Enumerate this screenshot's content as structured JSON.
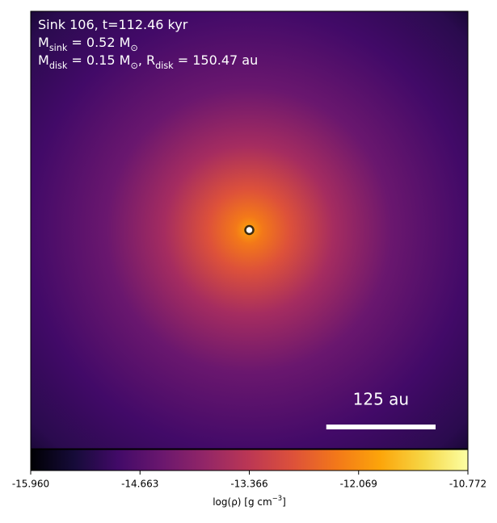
{
  "chart_data": {
    "type": "density-map",
    "annotations": [
      [
        "Sink 106, t=112.46 kyr"
      ],
      [
        "M",
        "sink",
        " = 0.52 M",
        "⊙"
      ],
      [
        "M",
        "disk",
        " = 0.15 M",
        "⊙",
        ", R",
        "disk",
        " = 150.47 au"
      ]
    ],
    "xlim": [
      -250,
      250
    ],
    "ylim": [
      -250,
      250
    ],
    "scale_bar": {
      "label": "125 au",
      "length": 125
    },
    "colorbar": {
      "label": [
        "log(ρ) [g cm",
        "−3",
        "]"
      ],
      "lim": [
        -15.96,
        -10.772
      ],
      "ticks": [
        {
          "value": -15.96,
          "label": "-15.960"
        },
        -14.663,
        -13.366,
        -12.069,
        -10.772
      ]
    }
  }
}
